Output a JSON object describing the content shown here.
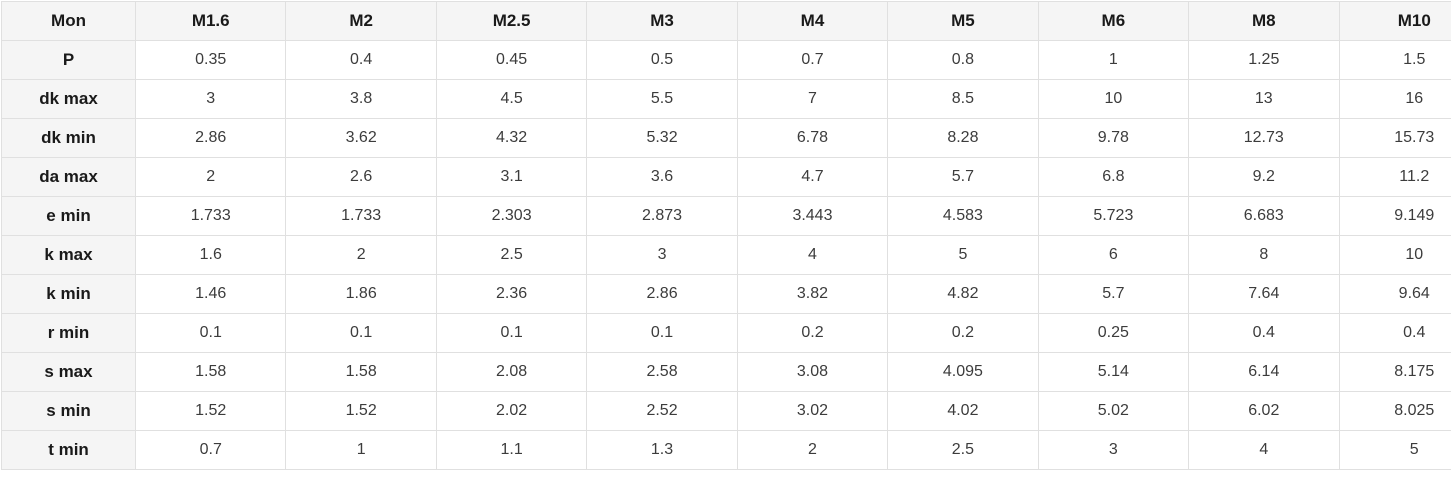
{
  "table": {
    "columns": [
      "Mon",
      "M1.6",
      "M2",
      "M2.5",
      "M3",
      "M4",
      "M5",
      "M6",
      "M8",
      "M10"
    ],
    "rows": [
      {
        "label": "P",
        "values": [
          "0.35",
          "0.4",
          "0.45",
          "0.5",
          "0.7",
          "0.8",
          "1",
          "1.25",
          "1.5"
        ]
      },
      {
        "label": "dk max",
        "values": [
          "3",
          "3.8",
          "4.5",
          "5.5",
          "7",
          "8.5",
          "10",
          "13",
          "16"
        ]
      },
      {
        "label": "dk min",
        "values": [
          "2.86",
          "3.62",
          "4.32",
          "5.32",
          "6.78",
          "8.28",
          "9.78",
          "12.73",
          "15.73"
        ]
      },
      {
        "label": "da max",
        "values": [
          "2",
          "2.6",
          "3.1",
          "3.6",
          "4.7",
          "5.7",
          "6.8",
          "9.2",
          "11.2"
        ]
      },
      {
        "label": "e min",
        "values": [
          "1.733",
          "1.733",
          "2.303",
          "2.873",
          "3.443",
          "4.583",
          "5.723",
          "6.683",
          "9.149"
        ]
      },
      {
        "label": "k max",
        "values": [
          "1.6",
          "2",
          "2.5",
          "3",
          "4",
          "5",
          "6",
          "8",
          "10"
        ]
      },
      {
        "label": "k min",
        "values": [
          "1.46",
          "1.86",
          "2.36",
          "2.86",
          "3.82",
          "4.82",
          "5.7",
          "7.64",
          "9.64"
        ]
      },
      {
        "label": "r min",
        "values": [
          "0.1",
          "0.1",
          "0.1",
          "0.1",
          "0.2",
          "0.2",
          "0.25",
          "0.4",
          "0.4"
        ]
      },
      {
        "label": "s max",
        "values": [
          "1.58",
          "1.58",
          "2.08",
          "2.58",
          "3.08",
          "4.095",
          "5.14",
          "6.14",
          "8.175"
        ]
      },
      {
        "label": "s min",
        "values": [
          "1.52",
          "1.52",
          "2.02",
          "2.52",
          "3.02",
          "4.02",
          "5.02",
          "6.02",
          "8.025"
        ]
      },
      {
        "label": "t min",
        "values": [
          "0.7",
          "1",
          "1.1",
          "1.3",
          "2",
          "2.5",
          "3",
          "4",
          "5"
        ]
      }
    ],
    "colors": {
      "header_background": "#f5f5f5",
      "body_background": "#ffffff",
      "border": "#e0e0e0",
      "header_text": "#1a1a1a",
      "cell_text": "#3c3c3c"
    }
  }
}
